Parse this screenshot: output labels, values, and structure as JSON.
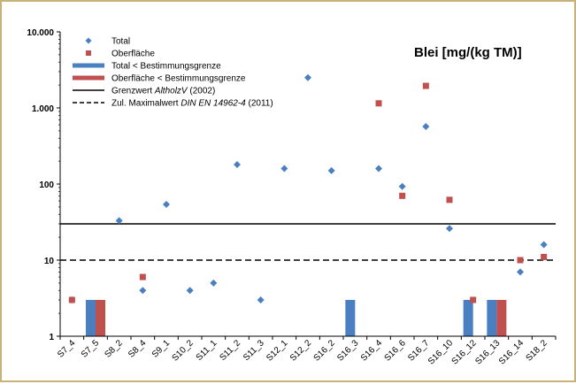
{
  "chart_data": {
    "type": "scatter",
    "title": "Blei [mg/(kg TM)]",
    "yscale": "log",
    "ylim": [
      1,
      10000
    ],
    "yticks": [
      {
        "value": 1,
        "label": "1"
      },
      {
        "value": 10,
        "label": "10"
      },
      {
        "value": 100,
        "label": "100"
      },
      {
        "value": 1000,
        "label": "1.000"
      },
      {
        "value": 10000,
        "label": "10.000"
      }
    ],
    "categories": [
      "S7_4",
      "S7_5",
      "S8_2",
      "S8_4",
      "S9_1",
      "S10_2",
      "S11_1",
      "S11_2",
      "S11_3",
      "S12_1",
      "S12_2",
      "S16_2",
      "S16_3",
      "S16_4",
      "S16_6",
      "S16_7",
      "S16_10",
      "S16_12",
      "S16_13",
      "S16_14",
      "S18_2"
    ],
    "series": [
      {
        "name": "Total",
        "kind": "point",
        "marker": "diamond",
        "color": "#4a7fc1",
        "values": [
          3,
          null,
          33,
          4,
          54,
          4,
          5,
          180,
          3,
          160,
          2500,
          150,
          null,
          160,
          93,
          570,
          26,
          null,
          null,
          7,
          16
        ]
      },
      {
        "name": "Oberfläche",
        "kind": "point",
        "marker": "square",
        "color": "#c0504d",
        "values": [
          3,
          null,
          null,
          6,
          null,
          null,
          null,
          null,
          null,
          null,
          null,
          null,
          null,
          1150,
          70,
          1950,
          62,
          3,
          null,
          10,
          11
        ]
      },
      {
        "name": "Total < Bestimmungsgrenze",
        "kind": "bar",
        "color": "#4a7fc1",
        "values": [
          null,
          3,
          null,
          null,
          null,
          null,
          null,
          null,
          null,
          null,
          null,
          null,
          3,
          null,
          null,
          null,
          null,
          3,
          3,
          null,
          null
        ]
      },
      {
        "name": "Oberfläche < Bestimmungsgrenze",
        "kind": "bar",
        "color": "#c0504d",
        "values": [
          null,
          3,
          null,
          null,
          null,
          null,
          null,
          null,
          null,
          null,
          null,
          null,
          null,
          null,
          null,
          null,
          null,
          null,
          3,
          null,
          null
        ]
      }
    ],
    "reference_lines": [
      {
        "label_pre": "Grenzwert ",
        "label_italic": "AltholzV",
        "label_post": " (2002)",
        "value": 30,
        "style": "solid",
        "color": "#000000"
      },
      {
        "label_pre": "Zul. Maximalwert ",
        "label_italic": "DIN EN 14962-4",
        "label_post": " (2011)",
        "value": 10,
        "style": "dashed",
        "color": "#000000"
      }
    ],
    "legend_position": "top-left"
  }
}
